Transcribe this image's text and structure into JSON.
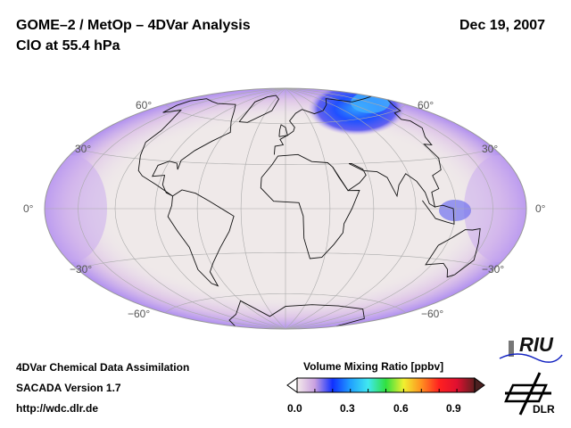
{
  "header": {
    "title": "GOME–2 / MetOp – 4DVar Analysis",
    "subtitle": "ClO at 55.4 hPa",
    "date": "Dec 19, 2007"
  },
  "map": {
    "projection": "Hammer",
    "lat_labels_left": [
      "60°",
      "30°",
      "0°",
      "−30°",
      "−60°"
    ],
    "lat_labels_right": [
      "60°",
      "30°",
      "0°",
      "−30°",
      "−60°"
    ],
    "ocean_color": "#efe9e9"
  },
  "footer": {
    "line1": "4DVar Chemical Data Assimilation",
    "line2": "SACADA Version 1.7",
    "line3": "http://wdc.dlr.de"
  },
  "colorbar": {
    "title": "Volume Mixing Ratio [ppbv]",
    "ticks": [
      "0.0",
      "0.3",
      "0.6",
      "0.9"
    ],
    "range": [
      0.0,
      1.0
    ],
    "colors": [
      "#f4eaea",
      "#c9a0e0",
      "#1030ff",
      "#20a0ff",
      "#40e8f0",
      "#30e040",
      "#f0f030",
      "#ff9020",
      "#ff2020",
      "#e01030",
      "#602020"
    ]
  },
  "logos": {
    "riu": "RIU",
    "dlr": "DLR"
  }
}
